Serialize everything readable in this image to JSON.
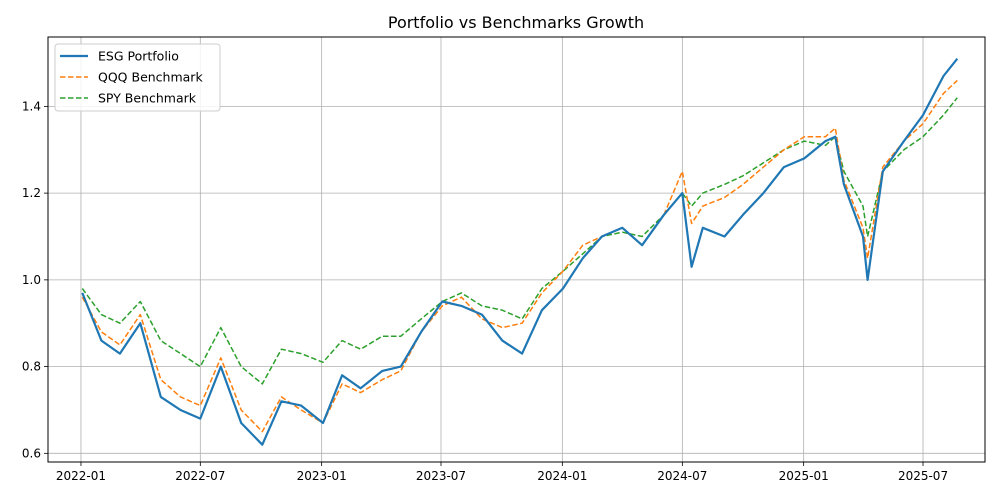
{
  "chart_data": {
    "type": "line",
    "title": "Portfolio vs Benchmarks Growth",
    "xlabel": "",
    "ylabel": "",
    "x_ticks": [
      "2022-01",
      "2022-07",
      "2023-01",
      "2023-07",
      "2024-01",
      "2024-07",
      "2025-01",
      "2025-07"
    ],
    "y_ticks": [
      "0.6",
      "0.8",
      "1.0",
      "1.2",
      "1.4"
    ],
    "ylim": [
      0.58,
      1.56
    ],
    "xlim": [
      "2021-11-12",
      "2025-10-03"
    ],
    "grid": true,
    "legend_position": "upper-left",
    "x": [
      "2022-01-03",
      "2022-02-01",
      "2022-03-01",
      "2022-04-01",
      "2022-05-02",
      "2022-06-01",
      "2022-07-01",
      "2022-08-01",
      "2022-09-01",
      "2022-10-03",
      "2022-11-01",
      "2022-12-01",
      "2023-01-03",
      "2023-02-01",
      "2023-03-01",
      "2023-04-03",
      "2023-05-01",
      "2023-06-01",
      "2023-07-03",
      "2023-08-01",
      "2023-09-01",
      "2023-10-02",
      "2023-11-01",
      "2023-12-01",
      "2024-01-02",
      "2024-02-01",
      "2024-03-01",
      "2024-04-01",
      "2024-05-01",
      "2024-06-03",
      "2024-07-01",
      "2024-07-15",
      "2024-08-01",
      "2024-09-03",
      "2024-10-01",
      "2024-11-01",
      "2024-12-02",
      "2025-01-02",
      "2025-02-03",
      "2025-02-18",
      "2025-03-03",
      "2025-04-01",
      "2025-04-08",
      "2025-05-01",
      "2025-06-02",
      "2025-07-01",
      "2025-08-01",
      "2025-08-22"
    ],
    "series": [
      {
        "name": "ESG Portfolio",
        "color": "#1f77b4",
        "style": "solid",
        "values": [
          0.97,
          0.86,
          0.83,
          0.9,
          0.73,
          0.7,
          0.68,
          0.8,
          0.67,
          0.62,
          0.72,
          0.71,
          0.67,
          0.78,
          0.75,
          0.79,
          0.8,
          0.88,
          0.95,
          0.94,
          0.92,
          0.86,
          0.83,
          0.93,
          0.98,
          1.05,
          1.1,
          1.12,
          1.08,
          1.15,
          1.2,
          1.03,
          1.12,
          1.1,
          1.15,
          1.2,
          1.26,
          1.28,
          1.32,
          1.33,
          1.22,
          1.1,
          1.0,
          1.25,
          1.32,
          1.38,
          1.47,
          1.51
        ]
      },
      {
        "name": "QQQ Benchmark",
        "color": "#ff7f0e",
        "style": "dashed",
        "values": [
          0.96,
          0.88,
          0.85,
          0.92,
          0.77,
          0.73,
          0.71,
          0.82,
          0.7,
          0.65,
          0.73,
          0.7,
          0.67,
          0.76,
          0.74,
          0.77,
          0.79,
          0.88,
          0.94,
          0.96,
          0.91,
          0.89,
          0.9,
          0.97,
          1.02,
          1.08,
          1.1,
          1.12,
          1.08,
          1.15,
          1.25,
          1.13,
          1.17,
          1.19,
          1.22,
          1.26,
          1.3,
          1.33,
          1.33,
          1.35,
          1.23,
          1.12,
          1.05,
          1.26,
          1.32,
          1.36,
          1.43,
          1.46
        ]
      },
      {
        "name": "SPY Benchmark",
        "color": "#2ca02c",
        "style": "dashed",
        "values": [
          0.98,
          0.92,
          0.9,
          0.95,
          0.86,
          0.83,
          0.8,
          0.89,
          0.8,
          0.76,
          0.84,
          0.83,
          0.81,
          0.86,
          0.84,
          0.87,
          0.87,
          0.91,
          0.95,
          0.97,
          0.94,
          0.93,
          0.91,
          0.98,
          1.02,
          1.06,
          1.1,
          1.11,
          1.1,
          1.15,
          1.2,
          1.17,
          1.2,
          1.22,
          1.24,
          1.27,
          1.3,
          1.32,
          1.31,
          1.33,
          1.25,
          1.17,
          1.1,
          1.25,
          1.3,
          1.33,
          1.38,
          1.42
        ]
      }
    ]
  }
}
